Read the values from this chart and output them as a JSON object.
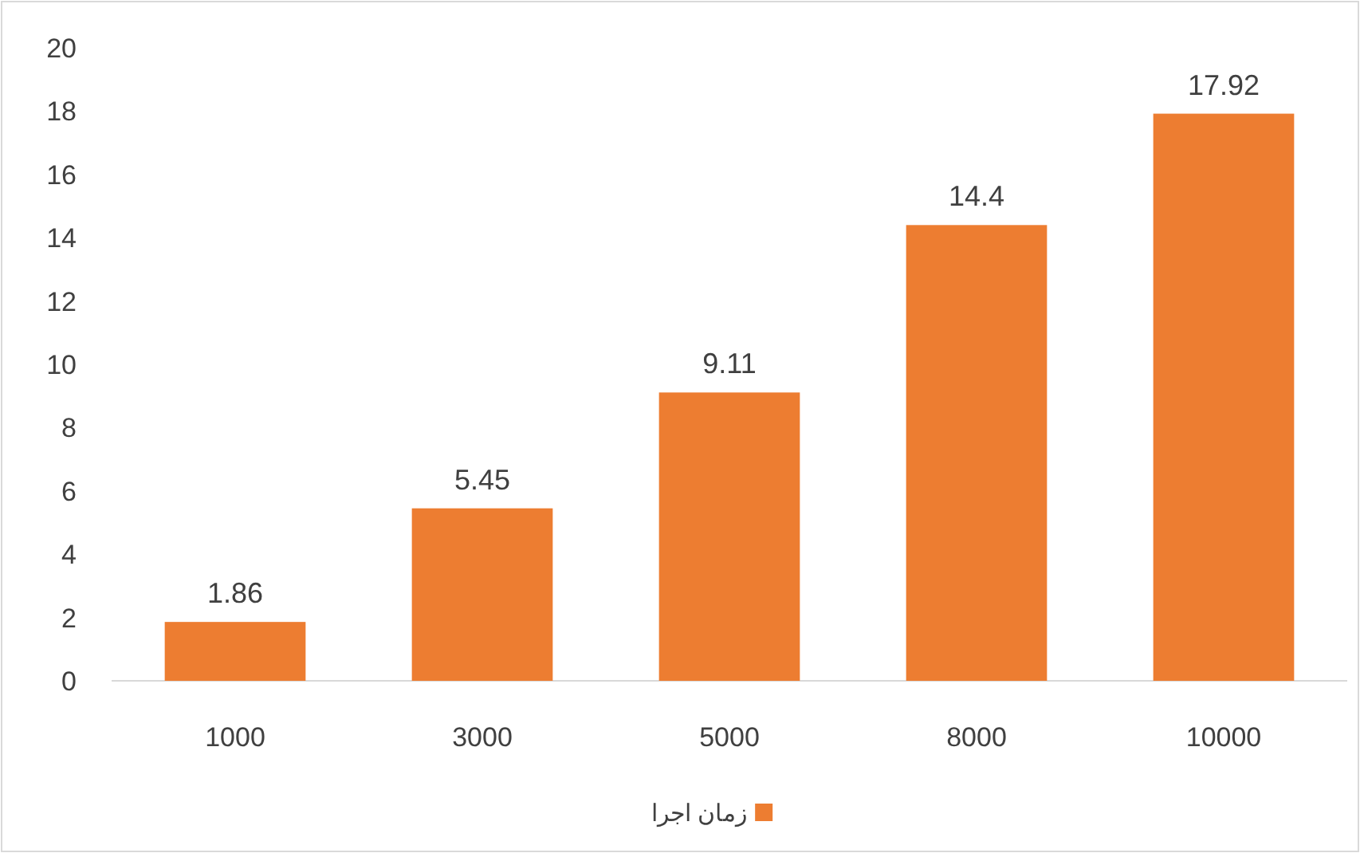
{
  "chart_data": {
    "type": "bar",
    "categories": [
      "1000",
      "3000",
      "5000",
      "8000",
      "10000"
    ],
    "series": [
      {
        "name": "زمان اجرا",
        "color": "#ed7d31",
        "values": [
          1.86,
          5.45,
          9.11,
          14.4,
          17.92
        ]
      }
    ],
    "ylim": [
      0,
      20
    ],
    "yticks": [
      0,
      2,
      4,
      6,
      8,
      10,
      12,
      14,
      16,
      18,
      20
    ],
    "data_labels": true,
    "legend": "bottom",
    "grid": false
  }
}
